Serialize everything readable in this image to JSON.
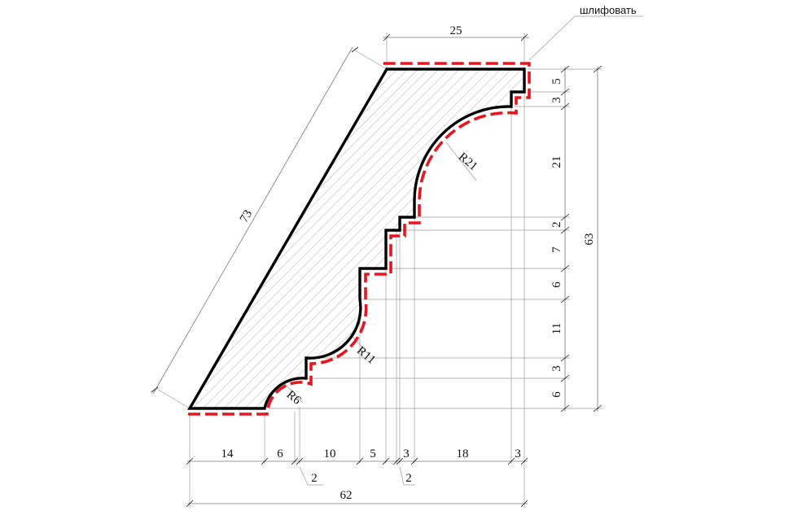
{
  "note": "шлифовать",
  "colors": {
    "profile": "#000000",
    "sanding": "#e8141e",
    "hatch": "#9a9a9a",
    "dims": "#888888"
  },
  "dims": {
    "top": "25",
    "diagonal": "73",
    "right": [
      "5",
      "3",
      "21",
      "2",
      "7",
      "6",
      "11",
      "3",
      "6"
    ],
    "right_total": "63",
    "bottom": [
      "14",
      "6",
      "10",
      "5",
      "3",
      "18",
      "3"
    ],
    "bottom_small_a": "2",
    "bottom_small_b": "2",
    "bottom_total": "62"
  },
  "radii": {
    "r21": "R21",
    "r11": "R11",
    "r6": "R6"
  }
}
